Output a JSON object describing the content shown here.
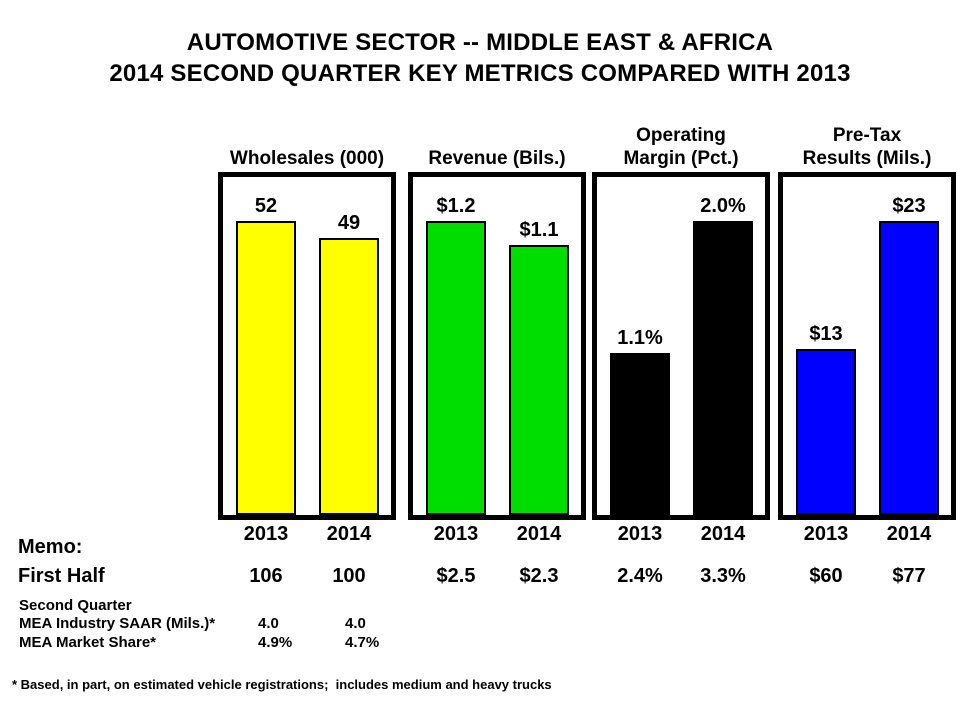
{
  "title": {
    "line1": "AUTOMOTIVE SECTOR -- MIDDLE EAST & AFRICA",
    "line2": "2014 SECOND QUARTER KEY METRICS COMPARED WITH 2013"
  },
  "chart_data": {
    "type": "bar",
    "categories": [
      "2013",
      "2014"
    ],
    "panels": [
      {
        "title": "Wholesales (000)",
        "title_lines": [
          "Wholesales (000)"
        ],
        "color": "#FFFF00",
        "values": [
          52,
          49
        ],
        "labels": [
          "52",
          "49"
        ]
      },
      {
        "title": "Revenue (Bils.)",
        "title_lines": [
          "Revenue (Bils.)"
        ],
        "color": "#00DD00",
        "values": [
          1.2,
          1.1
        ],
        "labels": [
          "$1.2",
          "$1.1"
        ]
      },
      {
        "title": "Operating Margin (Pct.)",
        "title_lines": [
          "Operating",
          "Margin (Pct.)"
        ],
        "color": "#000000",
        "values": [
          1.1,
          2.0
        ],
        "labels": [
          "1.1%",
          "2.0%"
        ]
      },
      {
        "title": "Pre-Tax Results (Mils.)",
        "title_lines": [
          "Pre-Tax",
          "Results (Mils.)"
        ],
        "color": "#0000FF",
        "values": [
          13,
          23
        ],
        "labels": [
          "$13",
          "$23"
        ]
      }
    ],
    "legend_position": "none",
    "grid": false
  },
  "memo": {
    "heading": "Memo:",
    "first_half_label": "First Half",
    "first_half_values": [
      "106",
      "100",
      "$2.5",
      "$2.3",
      "2.4%",
      "3.3%",
      "$60",
      "$77"
    ],
    "second_quarter": {
      "heading": "Second Quarter",
      "rows": [
        {
          "label": "MEA Industry SAAR (Mils.)*",
          "values": [
            "4.0",
            "4.0"
          ]
        },
        {
          "label": "MEA Market Share*",
          "values": [
            "4.9%",
            "4.7%"
          ]
        }
      ]
    }
  },
  "footnote": "* Based, in part, on estimated vehicle registrations;  includes medium and heavy trucks"
}
